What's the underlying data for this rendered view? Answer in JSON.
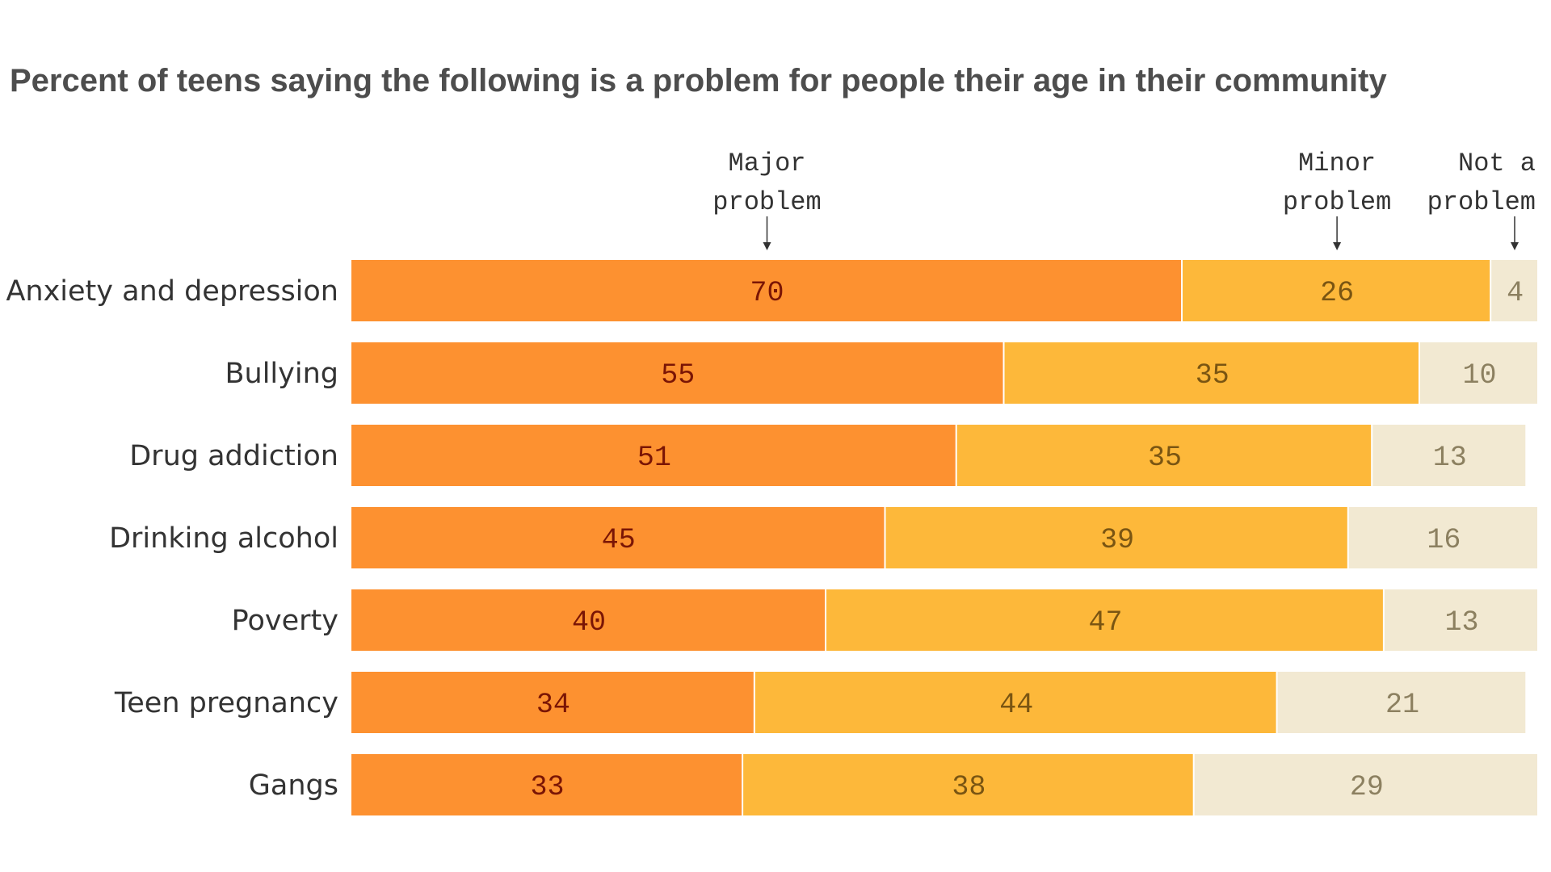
{
  "chart_data": {
    "type": "bar",
    "orientation": "horizontal",
    "stacked": true,
    "title": "Percent of teens saying the following is a problem for people their age in their community",
    "categories": [
      "Anxiety and depression",
      "Bullying",
      "Drug addiction",
      "Drinking alcohol",
      "Poverty",
      "Teen pregnancy",
      "Gangs"
    ],
    "series": [
      {
        "name": "Major problem",
        "legend_lines": [
          "Major",
          "problem"
        ],
        "color": "#fd9130",
        "label_color": "#7a1505",
        "values": [
          70,
          55,
          51,
          45,
          40,
          34,
          33
        ]
      },
      {
        "name": "Minor problem",
        "legend_lines": [
          "Minor",
          "problem"
        ],
        "color": "#fdb83a",
        "label_color": "#7a5512",
        "values": [
          26,
          35,
          35,
          39,
          47,
          44,
          38
        ]
      },
      {
        "name": "Not a problem",
        "legend_lines": [
          "Not a",
          "problem"
        ],
        "color": "#f2e9d2",
        "label_color": "#8c8060",
        "values": [
          4,
          10,
          13,
          16,
          13,
          21,
          29
        ]
      }
    ],
    "xlim": [
      0,
      100
    ],
    "grid": false,
    "legend_placement": "top, labels above first bar with arrows"
  }
}
